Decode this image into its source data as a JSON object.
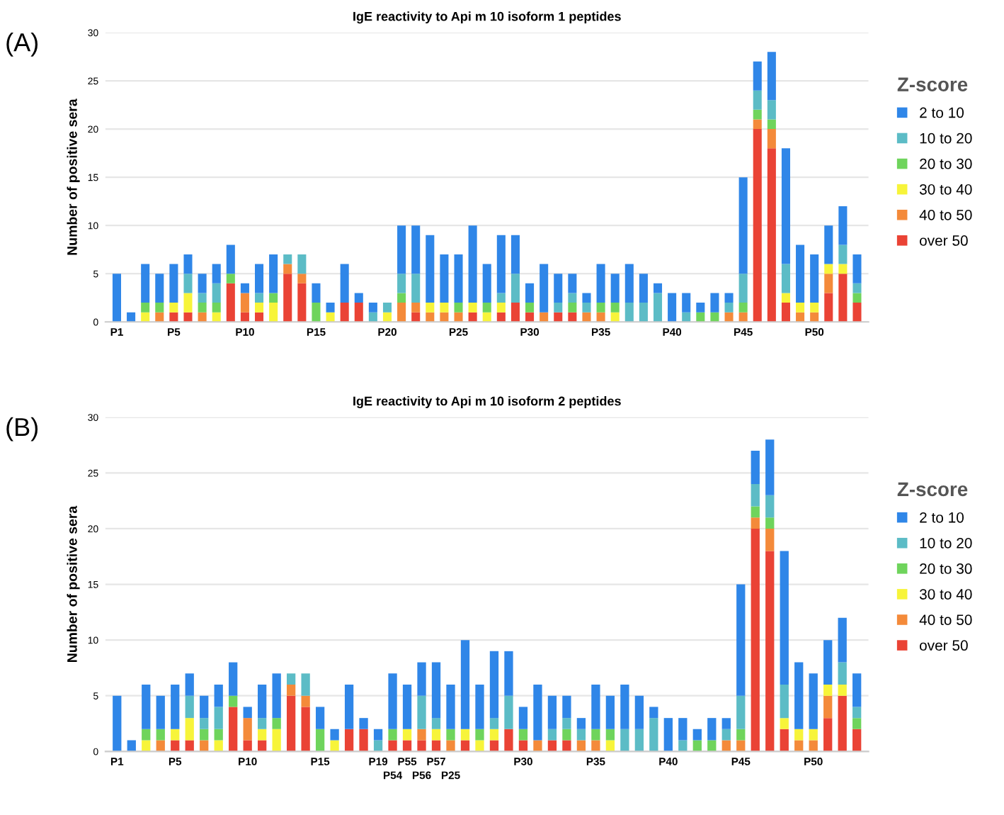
{
  "chart_data": [
    {
      "type": "bar",
      "stacked": true,
      "title": "IgE reactivity to Api m 10 isoform 1 peptides",
      "ylabel": "Number of positive sera",
      "legend_title": "Z-score",
      "legend": "right",
      "grid": "y",
      "annotations": [
        "(A)"
      ],
      "ylim": [
        0,
        30
      ],
      "yticks": [
        0,
        5,
        10,
        15,
        20,
        25,
        30
      ],
      "categories": [
        "P1",
        null,
        null,
        null,
        "P5",
        null,
        null,
        null,
        null,
        "P10",
        null,
        null,
        null,
        null,
        "P15",
        null,
        null,
        null,
        null,
        "P20",
        null,
        null,
        null,
        null,
        "P25",
        null,
        null,
        null,
        null,
        "P30",
        null,
        null,
        null,
        null,
        "P35",
        null,
        null,
        null,
        null,
        "P40",
        null,
        null,
        null,
        null,
        "P45",
        null,
        null,
        null,
        null,
        "P50",
        null,
        null,
        null
      ],
      "series": [
        {
          "name": "over 50",
          "color": "#ea4335",
          "values": [
            0,
            0,
            0,
            0,
            1,
            1,
            0,
            0,
            4,
            1,
            1,
            0,
            5,
            4,
            0,
            0,
            2,
            2,
            0,
            0,
            0,
            1,
            0,
            0,
            0,
            1,
            0,
            1,
            2,
            1,
            0,
            1,
            1,
            0,
            0,
            0,
            0,
            0,
            0,
            0,
            0,
            0,
            0,
            0,
            0,
            20,
            18,
            2,
            0,
            0,
            3,
            5,
            2
          ]
        },
        {
          "name": "40 to 50",
          "color": "#f48a3a",
          "values": [
            0,
            0,
            0,
            1,
            0,
            0,
            1,
            0,
            0,
            2,
            0,
            0,
            1,
            1,
            0,
            0,
            0,
            0,
            0,
            0,
            2,
            1,
            1,
            1,
            1,
            0,
            0,
            0,
            0,
            0,
            1,
            0,
            0,
            1,
            1,
            0,
            0,
            0,
            0,
            0,
            0,
            0,
            0,
            1,
            1,
            1,
            2,
            0,
            1,
            1,
            2,
            0,
            0
          ]
        },
        {
          "name": "30 to 40",
          "color": "#f7f43a",
          "values": [
            0,
            0,
            1,
            0,
            1,
            2,
            0,
            1,
            0,
            0,
            1,
            2,
            0,
            0,
            0,
            1,
            0,
            0,
            0,
            1,
            0,
            0,
            1,
            1,
            0,
            1,
            1,
            1,
            0,
            0,
            0,
            0,
            0,
            0,
            0,
            1,
            0,
            0,
            0,
            0,
            0,
            0,
            0,
            0,
            0,
            0,
            0,
            1,
            1,
            1,
            1,
            1,
            0
          ]
        },
        {
          "name": "20 to 30",
          "color": "#6fd45c",
          "values": [
            0,
            0,
            1,
            1,
            0,
            0,
            1,
            1,
            1,
            0,
            0,
            1,
            0,
            0,
            2,
            0,
            0,
            0,
            0,
            0,
            1,
            0,
            0,
            0,
            1,
            0,
            1,
            0,
            0,
            1,
            0,
            0,
            1,
            0,
            1,
            1,
            0,
            0,
            0,
            0,
            0,
            1,
            1,
            0,
            1,
            1,
            1,
            0,
            0,
            0,
            0,
            0,
            1
          ]
        },
        {
          "name": "10 to 20",
          "color": "#5cbcc6",
          "values": [
            0,
            0,
            0,
            0,
            0,
            2,
            1,
            2,
            0,
            0,
            1,
            0,
            1,
            2,
            0,
            0,
            0,
            0,
            1,
            1,
            2,
            3,
            0,
            0,
            0,
            0,
            0,
            1,
            3,
            0,
            0,
            1,
            1,
            1,
            0,
            0,
            2,
            2,
            3,
            0,
            1,
            0,
            0,
            1,
            3,
            2,
            2,
            3,
            0,
            0,
            0,
            2,
            1
          ]
        },
        {
          "name": "2 to 10",
          "color": "#2f86e8",
          "values": [
            5,
            1,
            4,
            3,
            4,
            2,
            2,
            2,
            3,
            1,
            3,
            4,
            0,
            0,
            2,
            1,
            4,
            1,
            1,
            0,
            5,
            5,
            7,
            5,
            5,
            8,
            4,
            6,
            4,
            2,
            5,
            3,
            2,
            1,
            4,
            3,
            4,
            3,
            1,
            3,
            2,
            1,
            2,
            1,
            10,
            3,
            5,
            12,
            6,
            5,
            4,
            4,
            3
          ]
        }
      ]
    },
    {
      "type": "bar",
      "stacked": true,
      "title": "IgE reactivity to Api m 10 isoform 2 peptides",
      "ylabel": "Number of positive sera",
      "legend_title": "Z-score",
      "legend": "right",
      "grid": "y",
      "annotations": [
        "(B)"
      ],
      "ylim": [
        0,
        30
      ],
      "yticks": [
        0,
        5,
        10,
        15,
        20,
        25,
        30
      ],
      "categories": [
        "P1",
        null,
        null,
        null,
        "P5",
        null,
        null,
        null,
        null,
        "P10",
        null,
        null,
        null,
        null,
        "P15",
        null,
        null,
        null,
        "P19",
        "P54",
        "P55",
        "P56",
        "P57",
        "P25",
        null,
        null,
        null,
        null,
        "P30",
        null,
        null,
        null,
        null,
        "P35",
        null,
        null,
        null,
        null,
        "P40",
        null,
        null,
        null,
        null,
        "P45",
        null,
        null,
        null,
        null,
        "P50",
        null,
        null,
        null
      ],
      "series": [
        {
          "name": "over 50",
          "color": "#ea4335",
          "values": [
            0,
            0,
            0,
            0,
            1,
            1,
            0,
            0,
            4,
            1,
            1,
            0,
            5,
            4,
            0,
            0,
            2,
            2,
            0,
            1,
            1,
            1,
            1,
            0,
            1,
            0,
            1,
            2,
            1,
            0,
            1,
            1,
            0,
            0,
            0,
            0,
            0,
            0,
            0,
            0,
            0,
            0,
            0,
            0,
            20,
            18,
            2,
            0,
            0,
            3,
            5,
            2
          ]
        },
        {
          "name": "40 to 50",
          "color": "#f48a3a",
          "values": [
            0,
            0,
            0,
            1,
            0,
            0,
            1,
            0,
            0,
            2,
            0,
            0,
            1,
            1,
            0,
            0,
            0,
            0,
            0,
            0,
            0,
            1,
            0,
            1,
            0,
            0,
            0,
            0,
            0,
            1,
            0,
            0,
            1,
            1,
            0,
            0,
            0,
            0,
            0,
            0,
            0,
            0,
            1,
            1,
            1,
            2,
            0,
            1,
            1,
            2,
            0,
            0
          ]
        },
        {
          "name": "30 to 40",
          "color": "#f7f43a",
          "values": [
            0,
            0,
            1,
            0,
            1,
            2,
            0,
            1,
            0,
            0,
            1,
            2,
            0,
            0,
            0,
            1,
            0,
            0,
            0,
            0,
            1,
            0,
            1,
            0,
            1,
            1,
            1,
            0,
            0,
            0,
            0,
            0,
            0,
            0,
            1,
            0,
            0,
            0,
            0,
            0,
            0,
            0,
            0,
            0,
            0,
            0,
            1,
            1,
            1,
            1,
            1,
            0
          ]
        },
        {
          "name": "20 to 30",
          "color": "#6fd45c",
          "values": [
            0,
            0,
            1,
            1,
            0,
            0,
            1,
            1,
            1,
            0,
            0,
            1,
            0,
            0,
            2,
            0,
            0,
            0,
            0,
            1,
            0,
            0,
            0,
            1,
            0,
            1,
            0,
            0,
            1,
            0,
            0,
            1,
            0,
            1,
            1,
            0,
            0,
            0,
            0,
            0,
            1,
            1,
            0,
            1,
            1,
            1,
            0,
            0,
            0,
            0,
            0,
            1
          ]
        },
        {
          "name": "10 to 20",
          "color": "#5cbcc6",
          "values": [
            0,
            0,
            0,
            0,
            0,
            2,
            1,
            2,
            0,
            0,
            1,
            0,
            1,
            2,
            0,
            0,
            0,
            0,
            1,
            0,
            0,
            3,
            1,
            0,
            0,
            0,
            1,
            3,
            0,
            0,
            1,
            1,
            1,
            0,
            0,
            2,
            2,
            3,
            0,
            1,
            0,
            0,
            1,
            3,
            2,
            2,
            3,
            0,
            0,
            0,
            2,
            1
          ]
        },
        {
          "name": "2 to 10",
          "color": "#2f86e8",
          "values": [
            5,
            1,
            4,
            3,
            4,
            2,
            2,
            2,
            3,
            1,
            3,
            4,
            0,
            0,
            2,
            1,
            4,
            1,
            1,
            5,
            4,
            3,
            5,
            4,
            8,
            4,
            6,
            4,
            2,
            5,
            3,
            2,
            1,
            4,
            3,
            4,
            3,
            1,
            3,
            2,
            1,
            2,
            1,
            10,
            3,
            5,
            12,
            6,
            5,
            4,
            4,
            3
          ]
        }
      ]
    }
  ]
}
